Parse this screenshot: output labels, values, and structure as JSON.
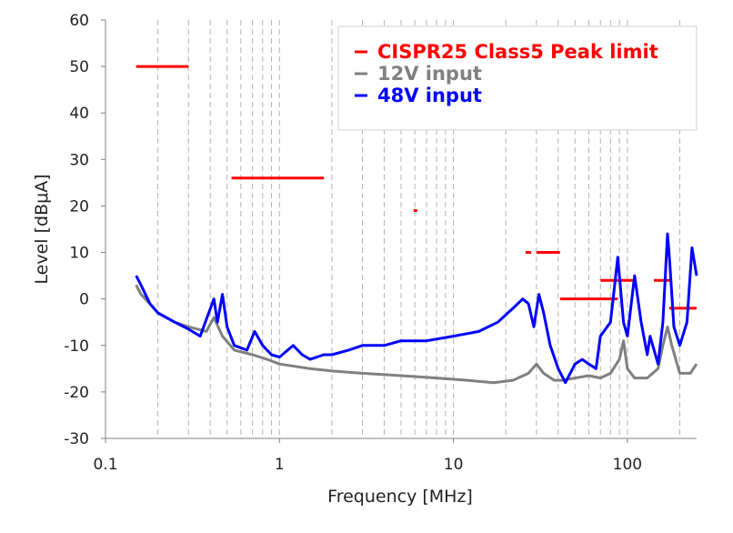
{
  "chart_data": {
    "type": "line",
    "xlabel": "Frequency [MHz]",
    "ylabel": "Level [dBμA]",
    "xscale": "log",
    "xlim": [
      0.1,
      250
    ],
    "ylim": [
      -30,
      60
    ],
    "grid": {
      "x_minor_dashed": true,
      "y_major": false
    },
    "legend_position": "top-right",
    "x_tick_labels": [
      "0.1",
      "1",
      "10",
      "100"
    ],
    "x_ticks": [
      0.1,
      1,
      10,
      100
    ],
    "y_tick_labels": [
      "60",
      "50",
      "40",
      "30",
      "20",
      "10",
      "0",
      "-10",
      "-20",
      "-30"
    ],
    "y_ticks": [
      60,
      50,
      40,
      30,
      20,
      10,
      0,
      -10,
      -20,
      -30
    ],
    "series": [
      {
        "name": "CISPR25 Class5 Peak limit",
        "color": "#ff0000",
        "style": "segments",
        "segments": [
          {
            "x": [
              0.15,
              0.3
            ],
            "y": 50
          },
          {
            "x": [
              0.53,
              1.8
            ],
            "y": 26
          },
          {
            "x": [
              5.9,
              6.2
            ],
            "y": 19
          },
          {
            "x": [
              26,
              28
            ],
            "y": 10
          },
          {
            "x": [
              30,
              41
            ],
            "y": 10
          },
          {
            "x": [
              41,
              88
            ],
            "y": 0
          },
          {
            "x": [
              70,
              108
            ],
            "y": 4
          },
          {
            "x": [
              142,
              175
            ],
            "y": 4
          },
          {
            "x": [
              174,
              250
            ],
            "y": -2
          }
        ]
      },
      {
        "name": "12V input",
        "color": "#808080",
        "style": "line",
        "x": [
          0.15,
          0.16,
          0.18,
          0.2,
          0.25,
          0.3,
          0.38,
          0.42,
          0.47,
          0.55,
          0.7,
          0.85,
          1.0,
          1.5,
          2.0,
          3.0,
          5.0,
          8.0,
          12.0,
          17.0,
          22.0,
          27.0,
          30.0,
          33.0,
          38.0,
          42.0,
          50.0,
          60.0,
          70.0,
          80.0,
          90.0,
          95.0,
          100.0,
          110.0,
          130.0,
          150.0,
          160.0,
          170.0,
          180.0,
          200.0,
          230.0,
          250.0
        ],
        "y": [
          3,
          1,
          -1,
          -3,
          -5,
          -6,
          -7,
          -4,
          -8,
          -11,
          -12,
          -13,
          -14,
          -15,
          -15.5,
          -16,
          -16.5,
          -17,
          -17.5,
          -18,
          -17.5,
          -16,
          -14,
          -16,
          -17.5,
          -17.5,
          -17,
          -16.5,
          -17,
          -16,
          -13,
          -9,
          -15,
          -17,
          -17,
          -15,
          -10,
          -6,
          -10,
          -16,
          -16,
          -14
        ]
      },
      {
        "name": "48V input",
        "color": "#0000ff",
        "style": "line",
        "x": [
          0.15,
          0.16,
          0.18,
          0.2,
          0.25,
          0.3,
          0.35,
          0.42,
          0.44,
          0.47,
          0.5,
          0.55,
          0.65,
          0.72,
          0.8,
          0.9,
          1.0,
          1.2,
          1.35,
          1.5,
          1.8,
          2.0,
          2.5,
          3.0,
          4.0,
          5.0,
          7.0,
          10.0,
          14.0,
          18.0,
          22.0,
          25.0,
          27.0,
          29.0,
          31.0,
          33.0,
          36.0,
          40.0,
          44.0,
          50.0,
          55.0,
          60.0,
          66.0,
          70.0,
          80.0,
          88.0,
          95.0,
          100.0,
          110.0,
          120.0,
          130.0,
          135.0,
          150.0,
          160.0,
          170.0,
          175.0,
          185.0,
          200.0,
          220.0,
          235.0,
          245.0,
          250.0
        ],
        "y": [
          5,
          3,
          -1,
          -3,
          -5,
          -6.5,
          -8,
          0,
          -5,
          1,
          -6,
          -10,
          -11,
          -7,
          -10,
          -12,
          -12.5,
          -10,
          -12,
          -13,
          -12,
          -12,
          -11,
          -10,
          -10,
          -9,
          -9,
          -8,
          -7,
          -5,
          -2,
          0,
          -1,
          -6,
          1,
          -3,
          -10,
          -15,
          -18,
          -14,
          -13,
          -14,
          -15,
          -8,
          -5,
          9,
          -5,
          -8,
          5,
          -5,
          -12,
          -8,
          -14,
          -5,
          14,
          8,
          -6,
          -10,
          -5,
          11,
          7,
          5
        ]
      }
    ]
  }
}
